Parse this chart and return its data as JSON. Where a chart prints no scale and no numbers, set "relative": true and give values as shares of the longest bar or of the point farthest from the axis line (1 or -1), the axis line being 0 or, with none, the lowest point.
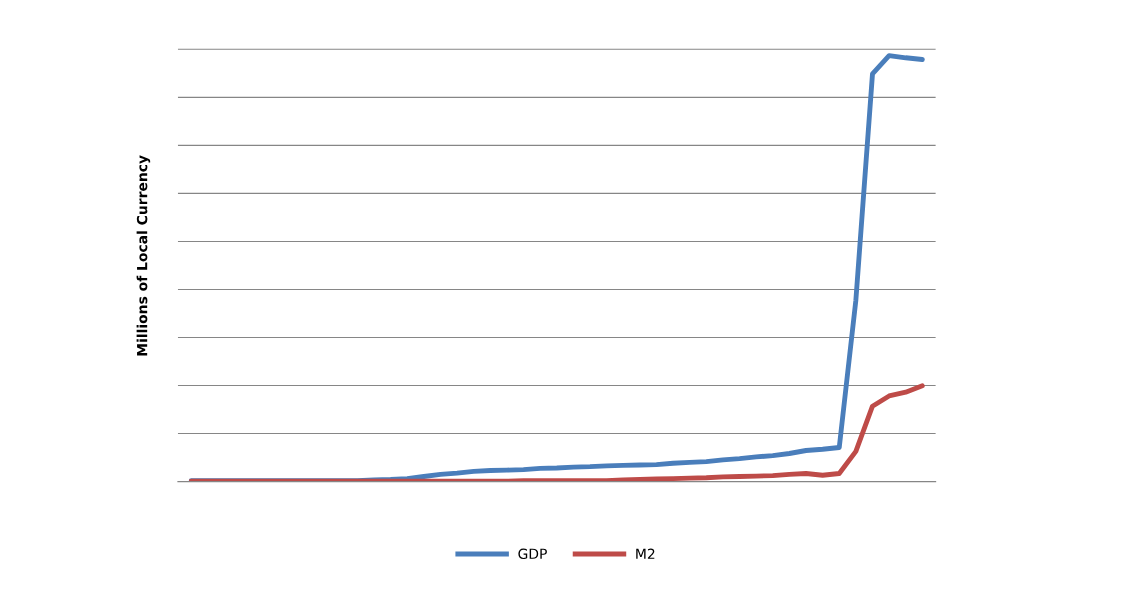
{
  "chart_data": {
    "type": "line",
    "ylabel": "Millions of Local Currency",
    "relative": true,
    "grid": "y",
    "legend": "bottom",
    "marker": "none",
    "line_style": "solid",
    "categories": [
      null,
      null,
      null,
      null,
      null,
      null,
      null,
      null,
      null,
      null,
      null,
      null,
      null,
      null,
      null,
      null,
      null,
      null,
      null,
      null,
      null,
      null,
      null,
      null,
      null,
      null,
      null,
      null,
      null,
      null,
      null,
      null,
      null,
      null,
      null,
      null,
      null,
      null,
      null,
      null,
      null,
      null,
      null,
      null,
      null
    ],
    "series": [
      {
        "name": "GDP",
        "color": "#4a7ebb",
        "values": [
          0.002,
          0.002,
          0.002,
          0.002,
          0.002,
          0.002,
          0.002,
          0.002,
          0.002,
          0.002,
          0.002,
          0.004,
          0.005,
          0.007,
          0.012,
          0.017,
          0.02,
          0.024,
          0.026,
          0.027,
          0.028,
          0.031,
          0.032,
          0.034,
          0.035,
          0.037,
          0.038,
          0.039,
          0.04,
          0.043,
          0.045,
          0.047,
          0.051,
          0.054,
          0.058,
          0.061,
          0.066,
          0.073,
          0.076,
          0.08,
          0.426,
          0.957,
          1.0,
          0.995,
          0.991
        ]
      },
      {
        "name": "M2",
        "color": "#be4b48",
        "values": [
          0.001,
          0.001,
          0.001,
          0.001,
          0.001,
          0.001,
          0.001,
          0.001,
          0.001,
          0.001,
          0.001,
          0.001,
          0.001,
          0.001,
          0.001,
          0.001,
          0.001,
          0.001,
          0.001,
          0.001,
          0.002,
          0.002,
          0.002,
          0.002,
          0.002,
          0.002,
          0.004,
          0.005,
          0.006,
          0.007,
          0.008,
          0.009,
          0.011,
          0.012,
          0.013,
          0.014,
          0.017,
          0.019,
          0.015,
          0.019,
          0.071,
          0.177,
          0.201,
          0.21,
          0.225
        ]
      }
    ]
  }
}
